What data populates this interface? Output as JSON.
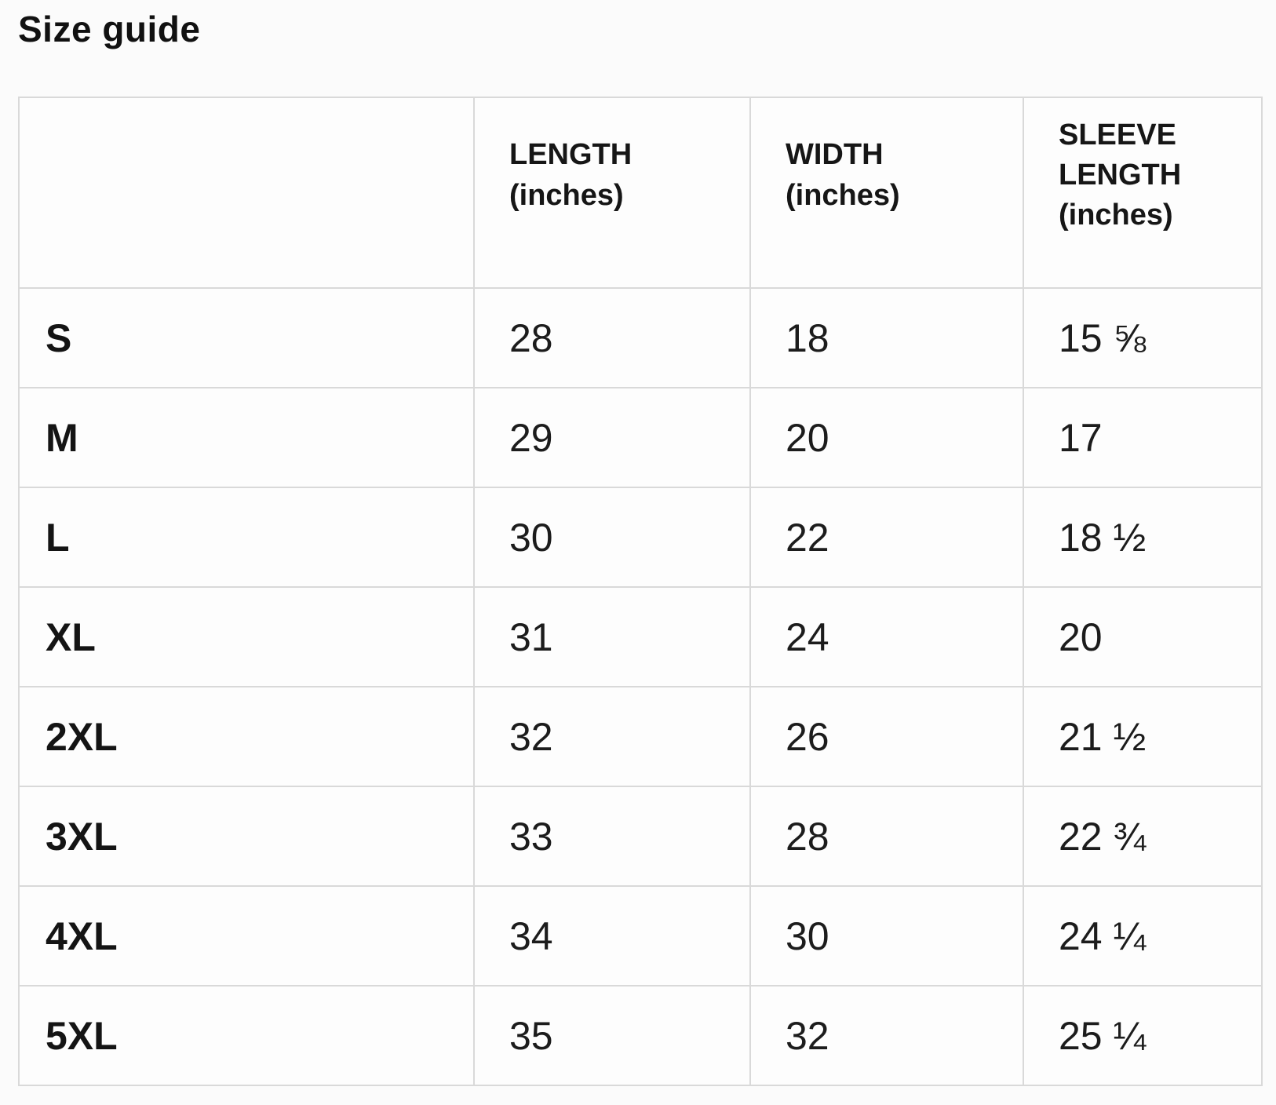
{
  "page": {
    "title": "Size guide"
  },
  "table": {
    "columns": [
      {
        "name": "size",
        "lines": []
      },
      {
        "name": "length",
        "lines": [
          "LENGTH",
          "(inches)"
        ]
      },
      {
        "name": "width",
        "lines": [
          "WIDTH",
          "(inches)"
        ]
      },
      {
        "name": "sleeve",
        "lines": [
          "SLEEVE",
          "LENGTH",
          "(inches)"
        ]
      }
    ],
    "rows": [
      {
        "size": "S",
        "length": "28",
        "width": "18",
        "sleeve": "15 ⅝"
      },
      {
        "size": "M",
        "length": "29",
        "width": "20",
        "sleeve": "17"
      },
      {
        "size": "L",
        "length": "30",
        "width": "22",
        "sleeve": "18 ½"
      },
      {
        "size": "XL",
        "length": "31",
        "width": "24",
        "sleeve": "20"
      },
      {
        "size": "2XL",
        "length": "32",
        "width": "26",
        "sleeve": "21 ½"
      },
      {
        "size": "3XL",
        "length": "33",
        "width": "28",
        "sleeve": "22 ¾"
      },
      {
        "size": "4XL",
        "length": "34",
        "width": "30",
        "sleeve": "24 ¼"
      },
      {
        "size": "5XL",
        "length": "35",
        "width": "32",
        "sleeve": "25 ¼"
      }
    ]
  },
  "colors": {
    "text": "#1c1c1c",
    "border": "#d9d9d9",
    "background": "#fbfbfb"
  }
}
